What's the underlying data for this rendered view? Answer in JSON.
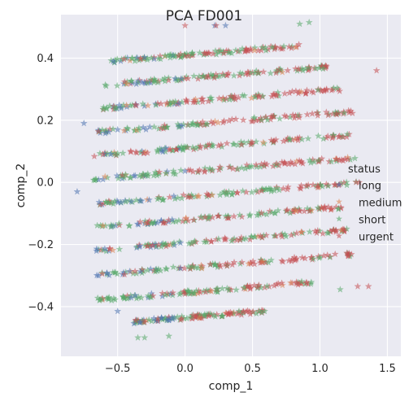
{
  "chart_data": {
    "type": "scatter",
    "title": "PCA FD001",
    "xlabel": "comp_1",
    "ylabel": "comp_2",
    "xlim": [
      -0.92,
      1.6
    ],
    "ylim": [
      -0.56,
      0.54
    ],
    "x_ticks": [
      -0.5,
      0.0,
      0.5,
      1.0,
      1.5
    ],
    "x_tick_labels": [
      "−0.5",
      "0.0",
      "0.5",
      "1.0",
      "1.5"
    ],
    "y_ticks": [
      -0.4,
      -0.2,
      0.0,
      0.2,
      0.4
    ],
    "y_tick_labels": [
      "−0.4",
      "−0.2",
      "0.0",
      "0.2",
      "0.4"
    ],
    "grid": true,
    "marker": "star",
    "legend": {
      "title": "status",
      "placement": "right",
      "entries": [
        "long",
        "medium",
        "short",
        "urgent"
      ]
    },
    "series": [
      {
        "name": "long",
        "color": "#4c72b0"
      },
      {
        "name": "medium",
        "color": "#dd8452"
      },
      {
        "name": "short",
        "color": "#55a868"
      },
      {
        "name": "urgent",
        "color": "#c44e52"
      }
    ],
    "bands": [
      {
        "y_center": 0.42,
        "x_start": -0.55,
        "x_end": 0.85,
        "slope": 0.035
      },
      {
        "y_center": 0.345,
        "x_start": -0.6,
        "x_end": 1.05,
        "slope": 0.035
      },
      {
        "y_center": 0.27,
        "x_start": -0.62,
        "x_end": 1.15,
        "slope": 0.035
      },
      {
        "y_center": 0.195,
        "x_start": -0.66,
        "x_end": 1.25,
        "slope": 0.035
      },
      {
        "y_center": 0.12,
        "x_start": -0.68,
        "x_end": 1.25,
        "slope": 0.035
      },
      {
        "y_center": 0.045,
        "x_start": -0.7,
        "x_end": 1.3,
        "slope": 0.035
      },
      {
        "y_center": -0.035,
        "x_start": -0.68,
        "x_end": 1.3,
        "slope": 0.035
      },
      {
        "y_center": -0.11,
        "x_start": -0.66,
        "x_end": 1.2,
        "slope": 0.035
      },
      {
        "y_center": -0.185,
        "x_start": -0.66,
        "x_end": 1.2,
        "slope": 0.035
      },
      {
        "y_center": -0.265,
        "x_start": -0.66,
        "x_end": 1.25,
        "slope": 0.035
      },
      {
        "y_center": -0.345,
        "x_start": -0.65,
        "x_end": 0.95,
        "slope": 0.035
      },
      {
        "y_center": -0.425,
        "x_start": -0.38,
        "x_end": 0.6,
        "slope": 0.035
      }
    ],
    "outliers": [
      {
        "x": 0.0,
        "y": 0.505,
        "series": "urgent"
      },
      {
        "x": 0.22,
        "y": 0.505,
        "series": "long"
      },
      {
        "x": 0.23,
        "y": 0.505,
        "series": "urgent"
      },
      {
        "x": 0.3,
        "y": 0.505,
        "series": "long"
      },
      {
        "x": 0.85,
        "y": 0.51,
        "series": "short"
      },
      {
        "x": 0.92,
        "y": 0.515,
        "series": "short"
      },
      {
        "x": 1.42,
        "y": 0.36,
        "series": "urgent"
      },
      {
        "x": -0.8,
        "y": -0.03,
        "series": "long"
      },
      {
        "x": -0.75,
        "y": 0.19,
        "series": "long"
      },
      {
        "x": 1.28,
        "y": -0.335,
        "series": "urgent"
      },
      {
        "x": 1.36,
        "y": -0.335,
        "series": "urgent"
      },
      {
        "x": -0.5,
        "y": -0.415,
        "series": "long"
      },
      {
        "x": -0.35,
        "y": -0.5,
        "series": "short"
      },
      {
        "x": -0.3,
        "y": -0.5,
        "series": "short"
      },
      {
        "x": -0.12,
        "y": -0.495,
        "series": "short"
      },
      {
        "x": 0.4,
        "y": -0.415,
        "series": "short"
      },
      {
        "x": 0.59,
        "y": -0.415,
        "series": "short"
      },
      {
        "x": 1.15,
        "y": -0.345,
        "series": "short"
      }
    ]
  }
}
